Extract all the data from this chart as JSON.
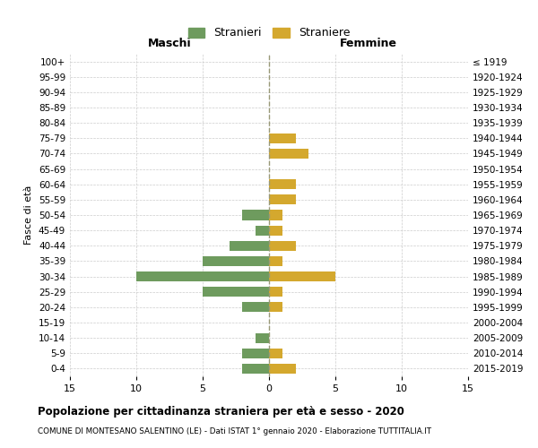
{
  "age_groups": [
    "0-4",
    "5-9",
    "10-14",
    "15-19",
    "20-24",
    "25-29",
    "30-34",
    "35-39",
    "40-44",
    "45-49",
    "50-54",
    "55-59",
    "60-64",
    "65-69",
    "70-74",
    "75-79",
    "80-84",
    "85-89",
    "90-94",
    "95-99",
    "100+"
  ],
  "birth_years": [
    "2015-2019",
    "2010-2014",
    "2005-2009",
    "2000-2004",
    "1995-1999",
    "1990-1994",
    "1985-1989",
    "1980-1984",
    "1975-1979",
    "1970-1974",
    "1965-1969",
    "1960-1964",
    "1955-1959",
    "1950-1954",
    "1945-1949",
    "1940-1944",
    "1935-1939",
    "1930-1934",
    "1925-1929",
    "1920-1924",
    "≤ 1919"
  ],
  "males": [
    2,
    2,
    1,
    0,
    2,
    5,
    10,
    5,
    3,
    1,
    2,
    0,
    0,
    0,
    0,
    0,
    0,
    0,
    0,
    0,
    0
  ],
  "females": [
    2,
    1,
    0,
    0,
    1,
    1,
    5,
    1,
    2,
    1,
    1,
    2,
    2,
    0,
    3,
    2,
    0,
    0,
    0,
    0,
    0
  ],
  "male_color": "#6e9b5e",
  "female_color": "#d4a82e",
  "male_label": "Stranieri",
  "female_label": "Straniere",
  "xlim": 15,
  "title": "Popolazione per cittadinanza straniera per età e sesso - 2020",
  "subtitle": "COMUNE DI MONTESANO SALENTINO (LE) - Dati ISTAT 1° gennaio 2020 - Elaborazione TUTTITALIA.IT",
  "ylabel_left": "Fasce di età",
  "maschi_label": "Maschi",
  "femmine_label": "Femmine",
  "bg_color": "#ffffff",
  "grid_color": "#cccccc"
}
